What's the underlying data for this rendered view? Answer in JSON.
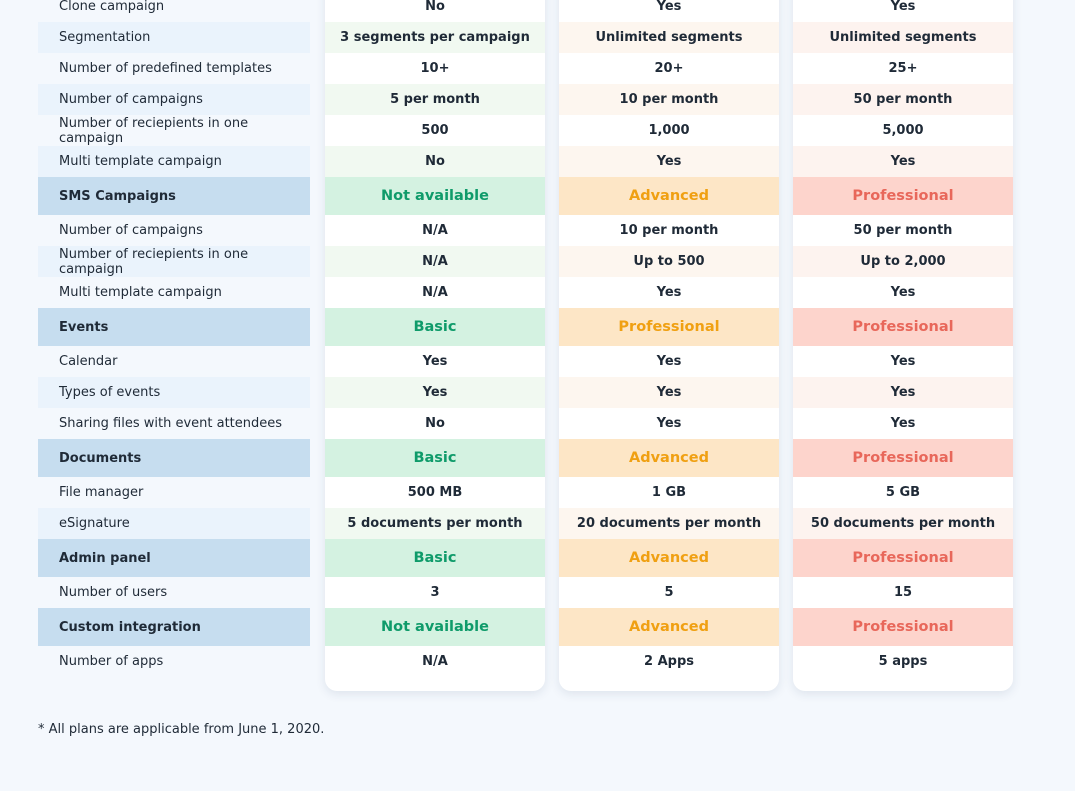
{
  "rows": [
    {
      "type": "item",
      "alt": false,
      "label": "Clone campaign",
      "values": [
        "No",
        "Yes",
        "Yes"
      ]
    },
    {
      "type": "item",
      "alt": true,
      "label": "Segmentation",
      "values": [
        "3 segments per campaign",
        "Unlimited segments",
        "Unlimited segments"
      ]
    },
    {
      "type": "item",
      "alt": false,
      "label": "Number of predefined templates",
      "values": [
        "10+",
        "20+",
        "25+"
      ]
    },
    {
      "type": "item",
      "alt": true,
      "label": "Number of campaigns",
      "values": [
        "5 per month",
        "10 per month",
        "50 per month"
      ]
    },
    {
      "type": "item",
      "alt": false,
      "label": "Number of reciepients in one campaign",
      "values": [
        "500",
        "1,000",
        "5,000"
      ]
    },
    {
      "type": "item",
      "alt": true,
      "label": "Multi template campaign",
      "values": [
        "No",
        "Yes",
        "Yes"
      ]
    },
    {
      "type": "section",
      "label": "SMS Campaigns",
      "values": [
        "Not available",
        "Advanced",
        "Professional"
      ]
    },
    {
      "type": "item",
      "alt": false,
      "label": "Number of campaigns",
      "values": [
        "N/A",
        "10 per month",
        "50 per month"
      ]
    },
    {
      "type": "item",
      "alt": true,
      "label": "Number of reciepients in one campaign",
      "values": [
        "N/A",
        "Up to 500",
        "Up to 2,000"
      ]
    },
    {
      "type": "item",
      "alt": false,
      "label": "Multi template campaign",
      "values": [
        "N/A",
        "Yes",
        "Yes"
      ]
    },
    {
      "type": "section",
      "label": "Events",
      "values": [
        "Basic",
        "Professional",
        "Professional"
      ]
    },
    {
      "type": "item",
      "alt": false,
      "label": "Calendar",
      "values": [
        "Yes",
        "Yes",
        "Yes"
      ]
    },
    {
      "type": "item",
      "alt": true,
      "label": "Types of events",
      "values": [
        "Yes",
        "Yes",
        "Yes"
      ]
    },
    {
      "type": "item",
      "alt": false,
      "label": "Sharing files with event attendees",
      "values": [
        "No",
        "Yes",
        "Yes"
      ]
    },
    {
      "type": "section",
      "label": "Documents",
      "values": [
        "Basic",
        "Advanced",
        "Professional"
      ]
    },
    {
      "type": "item",
      "alt": false,
      "label": "File manager",
      "values": [
        "500 MB",
        "1 GB",
        "5 GB"
      ]
    },
    {
      "type": "item",
      "alt": true,
      "label": "eSignature",
      "values": [
        "5 documents per month",
        "20 documents per month",
        "50 documents per month"
      ]
    },
    {
      "type": "section",
      "label": "Admin panel",
      "values": [
        "Basic",
        "Advanced",
        "Professional"
      ]
    },
    {
      "type": "item",
      "alt": false,
      "label": "Number of users",
      "values": [
        "3",
        "5",
        "15"
      ]
    },
    {
      "type": "section",
      "label": "Custom integration",
      "values": [
        "Not available",
        "Advanced",
        "Professional"
      ]
    },
    {
      "type": "item",
      "alt": false,
      "label": "Number of apps",
      "values": [
        "N/A",
        "2 Apps",
        "5 apps"
      ]
    }
  ],
  "footnote": "* All plans are applicable from June 1, 2020."
}
